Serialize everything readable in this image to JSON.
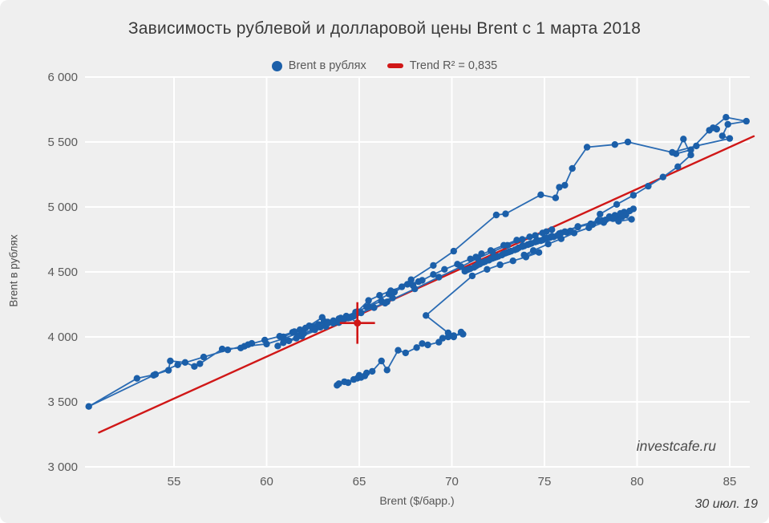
{
  "title": "Зависимость рублевой и долларовой цены Brent с 1 марта 2018",
  "watermark": "investcafe.ru",
  "date_label": "30 июл. 19",
  "colors": {
    "series": "#1b5fa9",
    "series_line": "#2a6bb3",
    "trend": "#d01717",
    "grid": "#ffffff",
    "tick_text": "#5a5a5a"
  },
  "chart_data": {
    "type": "scatter",
    "title": "Зависимость рублевой и долларовой цены Brent с 1 марта 2018",
    "xlabel": "Brent ($/барр.)",
    "ylabel": "Brent в рублях",
    "xlim": [
      50,
      86.5
    ],
    "ylim": [
      3000,
      6000
    ],
    "x_ticks": [
      55,
      60,
      65,
      70,
      75,
      80,
      85
    ],
    "y_ticks": [
      3000,
      3500,
      4000,
      4500,
      5000,
      5500,
      6000
    ],
    "y_tick_labels": [
      "3 000",
      "3 500",
      "4 000",
      "4 500",
      "5 000",
      "5 500",
      "6 000"
    ],
    "grid": true,
    "legend_position": "top-center",
    "series": [
      {
        "name": "Brent в рублях",
        "color": "#1b5fa9",
        "points": [
          [
            63.8,
            3628
          ],
          [
            64.2,
            3655
          ],
          [
            63.9,
            3640
          ],
          [
            64.4,
            3648
          ],
          [
            64.7,
            3672
          ],
          [
            65.0,
            3705
          ],
          [
            64.9,
            3682
          ],
          [
            65.3,
            3700
          ],
          [
            65.1,
            3688
          ],
          [
            65.4,
            3722
          ],
          [
            65.7,
            3735
          ],
          [
            66.2,
            3815
          ],
          [
            66.5,
            3745
          ],
          [
            67.1,
            3897
          ],
          [
            67.5,
            3877
          ],
          [
            68.1,
            3918
          ],
          [
            68.4,
            3949
          ],
          [
            68.7,
            3938
          ],
          [
            69.3,
            3959
          ],
          [
            69.5,
            3990
          ],
          [
            69.8,
            4000
          ],
          [
            70.1,
            4010
          ],
          [
            70.6,
            4021
          ],
          [
            70.5,
            4037
          ],
          [
            70.1,
            4000
          ],
          [
            69.8,
            4031
          ],
          [
            68.6,
            4165
          ],
          [
            71.1,
            4470
          ],
          [
            71.9,
            4520
          ],
          [
            72.6,
            4555
          ],
          [
            73.3,
            4585
          ],
          [
            74.0,
            4615
          ],
          [
            74.7,
            4650
          ],
          [
            73.9,
            4630
          ],
          [
            74.4,
            4665
          ],
          [
            75.2,
            4715
          ],
          [
            75.9,
            4755
          ],
          [
            76.6,
            4800
          ],
          [
            77.4,
            4840
          ],
          [
            78.2,
            4880
          ],
          [
            78.9,
            4915
          ],
          [
            79.4,
            4940
          ],
          [
            79.8,
            4985
          ],
          [
            79.3,
            4960
          ],
          [
            78.5,
            4925
          ],
          [
            79.1,
            4950
          ],
          [
            79.6,
            4970
          ],
          [
            78.8,
            4935
          ],
          [
            77.9,
            4895
          ],
          [
            76.8,
            4850
          ],
          [
            75.8,
            4795
          ],
          [
            75.0,
            4755
          ],
          [
            74.3,
            4720
          ],
          [
            73.6,
            4685
          ],
          [
            72.9,
            4645
          ],
          [
            72.2,
            4605
          ],
          [
            71.5,
            4560
          ],
          [
            70.8,
            4515
          ],
          [
            71.3,
            4545
          ],
          [
            72.0,
            4590
          ],
          [
            72.7,
            4630
          ],
          [
            73.4,
            4670
          ],
          [
            74.1,
            4710
          ],
          [
            74.8,
            4740
          ],
          [
            75.5,
            4770
          ],
          [
            76.2,
            4805
          ],
          [
            75.7,
            4780
          ],
          [
            74.9,
            4745
          ],
          [
            74.2,
            4715
          ],
          [
            73.5,
            4675
          ],
          [
            72.8,
            4640
          ],
          [
            72.1,
            4600
          ],
          [
            71.4,
            4555
          ],
          [
            70.7,
            4505
          ],
          [
            71.0,
            4525
          ],
          [
            71.7,
            4575
          ],
          [
            72.4,
            4615
          ],
          [
            73.1,
            4655
          ],
          [
            73.8,
            4695
          ],
          [
            74.5,
            4730
          ],
          [
            75.1,
            4760
          ],
          [
            75.8,
            4790
          ],
          [
            76.4,
            4815
          ],
          [
            75.9,
            4800
          ],
          [
            75.3,
            4765
          ],
          [
            74.6,
            4735
          ],
          [
            73.9,
            4700
          ],
          [
            73.2,
            4660
          ],
          [
            72.5,
            4620
          ],
          [
            71.8,
            4580
          ],
          [
            71.2,
            4535
          ],
          [
            70.9,
            4520
          ],
          [
            71.6,
            4570
          ],
          [
            72.3,
            4610
          ],
          [
            73.0,
            4650
          ],
          [
            73.8,
            4700
          ],
          [
            74.6,
            4745
          ],
          [
            75.4,
            4775
          ],
          [
            76.1,
            4810
          ],
          [
            76.8,
            4845
          ],
          [
            77.5,
            4870
          ],
          [
            78.1,
            4895
          ],
          [
            78.7,
            4910
          ],
          [
            79.2,
            4925
          ],
          [
            79.7,
            4905
          ],
          [
            79.0,
            4890
          ],
          [
            78.3,
            4900
          ],
          [
            77.6,
            4865
          ],
          [
            78.0,
            4945
          ],
          [
            78.9,
            5020
          ],
          [
            79.8,
            5090
          ],
          [
            80.6,
            5160
          ],
          [
            81.4,
            5230
          ],
          [
            82.2,
            5310
          ],
          [
            82.9,
            5400
          ],
          [
            82.5,
            5523
          ],
          [
            82.1,
            5409
          ],
          [
            82.9,
            5440
          ],
          [
            83.9,
            5590
          ],
          [
            84.3,
            5599
          ],
          [
            84.1,
            5609
          ],
          [
            84.8,
            5690
          ],
          [
            85.9,
            5660
          ],
          [
            84.9,
            5636
          ],
          [
            84.6,
            5547
          ],
          [
            85.0,
            5527
          ],
          [
            83.2,
            5470
          ],
          [
            81.9,
            5420
          ],
          [
            79.5,
            5500
          ],
          [
            78.8,
            5480
          ],
          [
            77.3,
            5460
          ],
          [
            76.5,
            5296
          ],
          [
            76.1,
            5167
          ],
          [
            75.8,
            5152
          ],
          [
            75.6,
            5070
          ],
          [
            74.8,
            5094
          ],
          [
            72.9,
            4947
          ],
          [
            72.4,
            4938
          ],
          [
            70.1,
            4660
          ],
          [
            69.0,
            4550
          ],
          [
            67.8,
            4440
          ],
          [
            66.6,
            4330
          ],
          [
            65.4,
            4230
          ],
          [
            64.2,
            4140
          ],
          [
            63.1,
            4120
          ],
          [
            62.3,
            4085
          ],
          [
            63.0,
            4150
          ],
          [
            61.9,
            4040
          ],
          [
            60.9,
            3985
          ],
          [
            60.0,
            3945
          ],
          [
            58.8,
            3928
          ],
          [
            59.2,
            3950
          ],
          [
            58.6,
            3915
          ],
          [
            57.6,
            3907
          ],
          [
            56.4,
            3794
          ],
          [
            56.1,
            3773
          ],
          [
            55.6,
            3804
          ],
          [
            54.8,
            3815
          ],
          [
            54.7,
            3743
          ],
          [
            54.0,
            3712
          ],
          [
            53.0,
            3681
          ],
          [
            50.4,
            3465
          ],
          [
            53.9,
            3705
          ],
          [
            55.2,
            3785
          ],
          [
            56.6,
            3845
          ],
          [
            57.9,
            3900
          ],
          [
            59.0,
            3940
          ],
          [
            59.9,
            3975
          ],
          [
            60.7,
            4005
          ],
          [
            61.4,
            4035
          ],
          [
            60.9,
            4000
          ],
          [
            61.8,
            4055
          ],
          [
            62.4,
            4080
          ],
          [
            61.5,
            4040
          ],
          [
            62.1,
            4068
          ],
          [
            62.8,
            4095
          ],
          [
            63.3,
            4115
          ],
          [
            63.9,
            4140
          ],
          [
            63.2,
            4100
          ],
          [
            62.5,
            4075
          ],
          [
            63.6,
            4125
          ],
          [
            64.3,
            4160
          ],
          [
            64.9,
            4195
          ],
          [
            65.5,
            4280
          ],
          [
            66.1,
            4320
          ],
          [
            66.7,
            4355
          ],
          [
            67.3,
            4385
          ],
          [
            66.9,
            4345
          ],
          [
            67.6,
            4405
          ],
          [
            68.2,
            4425
          ],
          [
            67.9,
            4395
          ],
          [
            68.4,
            4435
          ],
          [
            69.0,
            4480
          ],
          [
            69.6,
            4520
          ],
          [
            70.3,
            4560
          ],
          [
            71.0,
            4600
          ],
          [
            71.6,
            4640
          ],
          [
            71.3,
            4615
          ],
          [
            72.1,
            4665
          ],
          [
            72.8,
            4705
          ],
          [
            73.5,
            4745
          ],
          [
            74.2,
            4770
          ],
          [
            74.9,
            4800
          ],
          [
            75.4,
            4825
          ],
          [
            75.1,
            4810
          ],
          [
            74.5,
            4780
          ],
          [
            73.8,
            4750
          ],
          [
            73.0,
            4705
          ],
          [
            72.2,
            4655
          ],
          [
            71.4,
            4605
          ],
          [
            70.5,
            4540
          ],
          [
            69.3,
            4460
          ],
          [
            68.0,
            4370
          ],
          [
            66.5,
            4270
          ],
          [
            64.8,
            4170
          ],
          [
            63.2,
            4080
          ],
          [
            61.9,
            4005
          ],
          [
            60.6,
            3930
          ],
          [
            61.2,
            3970
          ],
          [
            62.0,
            4025
          ],
          [
            62.9,
            4075
          ],
          [
            63.7,
            4115
          ],
          [
            62.6,
            4055
          ],
          [
            61.6,
            3990
          ],
          [
            60.9,
            3955
          ],
          [
            61.7,
            4005
          ],
          [
            62.5,
            4060
          ],
          [
            63.3,
            4105
          ],
          [
            64.0,
            4145
          ],
          [
            64.8,
            4190
          ],
          [
            65.5,
            4235
          ],
          [
            66.2,
            4275
          ],
          [
            66.8,
            4300
          ],
          [
            66.4,
            4260
          ],
          [
            65.8,
            4225
          ],
          [
            65.1,
            4185
          ],
          [
            64.4,
            4145
          ],
          [
            63.6,
            4105
          ],
          [
            64.1,
            4130
          ],
          [
            64.7,
            4160
          ],
          [
            63.9,
            4110
          ],
          [
            64.5,
            4148
          ],
          [
            64.9,
            4107
          ]
        ]
      }
    ],
    "trend": {
      "label": "Trend R² = 0,835",
      "r2": "0,835",
      "color": "#d01717",
      "slope": 64.5,
      "intercept": -22,
      "x_start": 50.95,
      "x_end": 86.3
    },
    "current_point_marker": {
      "x": 64.9,
      "y": 4107,
      "half_width_x": 0.95,
      "half_height_y": 160,
      "color": "#d01717"
    }
  }
}
